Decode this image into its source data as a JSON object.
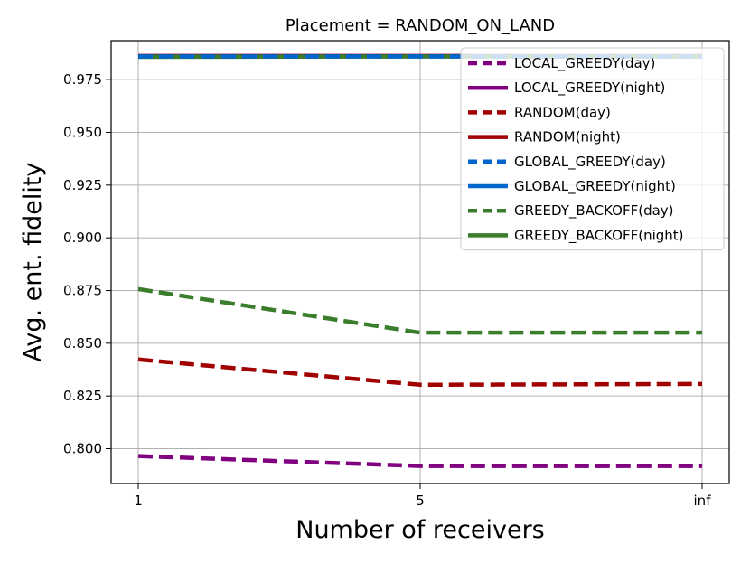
{
  "chart_data": {
    "type": "line",
    "title": "Placement = RANDOM_ON_LAND",
    "xlabel": "Number of receivers",
    "ylabel": "Avg. ent. fidelity",
    "categories": [
      "1",
      "5",
      "inf"
    ],
    "ylim": [
      0.7835,
      0.9935
    ],
    "yticks": [
      "0.800",
      "0.825",
      "0.850",
      "0.875",
      "0.900",
      "0.925",
      "0.950",
      "0.975"
    ],
    "grid": true,
    "legend_position": "top-right",
    "series": [
      {
        "name": "LOCAL_GREEDY(day)",
        "color": "#800080",
        "style": "dashed",
        "values": [
          0.7965,
          0.7918,
          0.7918
        ]
      },
      {
        "name": "LOCAL_GREEDY(night)",
        "color": "#800080",
        "style": "solid",
        "values": [
          0.9862,
          0.9862,
          0.9862
        ]
      },
      {
        "name": "RANDOM(day)",
        "color": "#a00000",
        "style": "dashed",
        "values": [
          0.8423,
          0.8303,
          0.8307
        ]
      },
      {
        "name": "RANDOM(night)",
        "color": "#a00000",
        "style": "solid",
        "values": [
          0.9862,
          0.9862,
          0.9862
        ]
      },
      {
        "name": "GLOBAL_GREEDY(day)",
        "color": "#0066cc",
        "style": "dashed",
        "values": [
          0.986,
          0.986,
          0.986
        ]
      },
      {
        "name": "GLOBAL_GREEDY(night)",
        "color": "#0066cc",
        "style": "solid",
        "values": [
          0.986,
          0.986,
          0.986
        ]
      },
      {
        "name": "GREEDY_BACKOFF(day)",
        "color": "#3a7d2c",
        "style": "dashed",
        "values": [
          0.8757,
          0.855,
          0.855
        ]
      },
      {
        "name": "GREEDY_BACKOFF(night)",
        "color": "#3a7d2c",
        "style": "solid",
        "values": [
          0.9858,
          0.986,
          0.986
        ]
      }
    ]
  }
}
